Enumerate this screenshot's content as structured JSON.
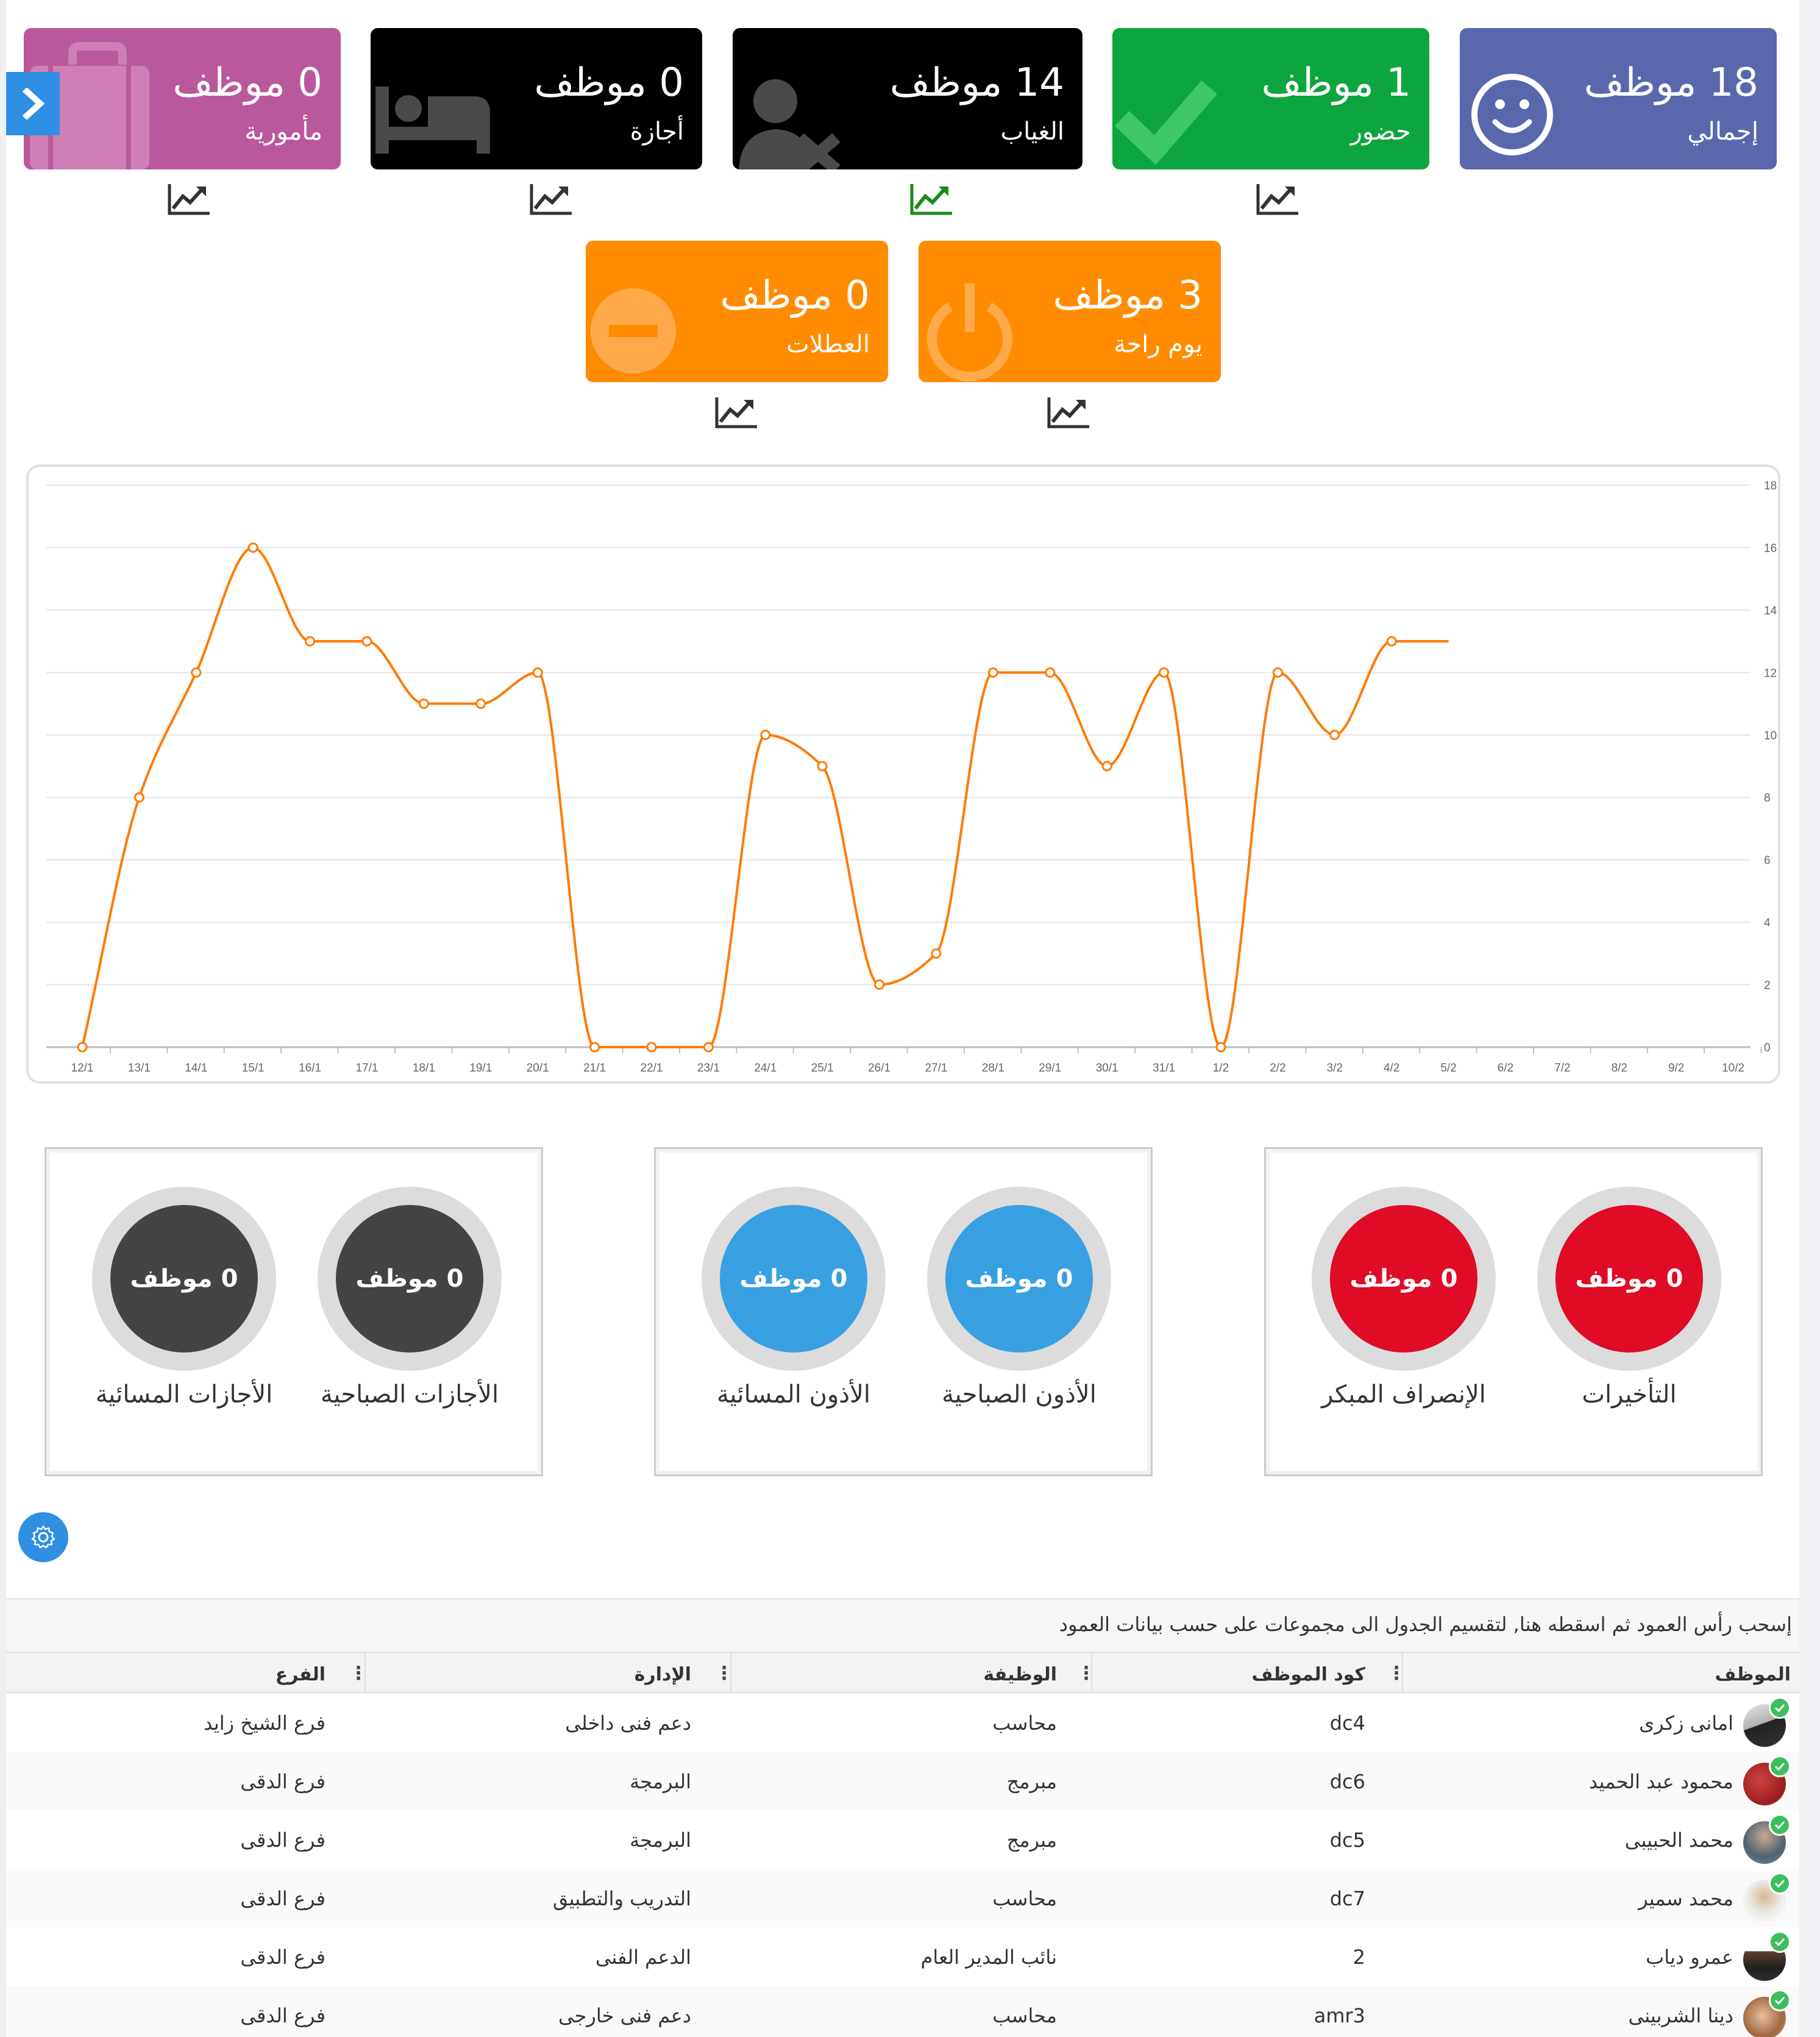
{
  "cards": {
    "total": {
      "count": "18 موظف",
      "label": "إجمالي",
      "color": "#5a67ad",
      "icon": "smiley-icon"
    },
    "present": {
      "count": "1 موظف",
      "label": "حضور",
      "color": "#0da53e",
      "icon": "checkmark-icon"
    },
    "absent": {
      "count": "14 موظف",
      "label": "الغياب",
      "color": "#000000",
      "icon": "user-remove-icon"
    },
    "leave": {
      "count": "0 موظف",
      "label": "أجازة",
      "color": "#000000",
      "icon": "bed-icon"
    },
    "mission": {
      "count": "0 موظف",
      "label": "مأمورية",
      "color": "#b9589a",
      "icon": "briefcase-icon"
    },
    "rest_day": {
      "count": "3 موظف",
      "label": "يوم راحة",
      "color": "#ff8c00",
      "icon": "power-icon"
    },
    "holidays": {
      "count": "0 موظف",
      "label": "العطلات",
      "color": "#ff8c00",
      "icon": "minus-circle-icon"
    }
  },
  "chart_data": {
    "type": "line",
    "x": [
      "12/1",
      "13/1",
      "14/1",
      "15/1",
      "16/1",
      "17/1",
      "18/1",
      "19/1",
      "20/1",
      "21/1",
      "22/1",
      "23/1",
      "24/1",
      "25/1",
      "26/1",
      "27/1",
      "28/1",
      "29/1",
      "30/1",
      "31/1",
      "1/2",
      "2/2",
      "3/2",
      "4/2",
      "5/2",
      "6/2",
      "7/2",
      "8/2",
      "9/2",
      "10/2"
    ],
    "series": [
      {
        "values": [
          0,
          8,
          12,
          16,
          13,
          13,
          11,
          11,
          12,
          0,
          0,
          0,
          10,
          9,
          2,
          3,
          12,
          12,
          9,
          12,
          0,
          12,
          10,
          13,
          13,
          null,
          null,
          null,
          null,
          null
        ],
        "color": "#ff7a00"
      }
    ],
    "ylim": [
      0,
      18
    ],
    "yticks": [
      "0",
      "2",
      "4",
      "6",
      "8",
      "10",
      "12",
      "14",
      "16",
      "18"
    ],
    "grid": true,
    "title": "",
    "xlabel": "",
    "ylabel": ""
  },
  "panels": {
    "late": {
      "count": "0 موظف",
      "label": "التأخيرات",
      "color": "#e00b25"
    },
    "early_leave": {
      "count": "0 موظف",
      "label": "الإنصراف المبكر",
      "color": "#e00b25"
    },
    "morning_permits": {
      "count": "0 موظف",
      "label": "الأذون الصباحية",
      "color": "#38a0e0"
    },
    "evening_permits": {
      "count": "0 موظف",
      "label": "الأذون المسائية",
      "color": "#38a0e0"
    },
    "morning_leaves": {
      "count": "0 موظف",
      "label": "الأجازات الصباحية",
      "color": "#444444"
    },
    "evening_leaves": {
      "count": "0 موظف",
      "label": "الأجازات المسائية",
      "color": "#444444"
    }
  },
  "table": {
    "group_hint": "إسحب رأس العمود ثم اسقطه هنا, لتقسيم الجدول الى مجموعات على حسب بيانات العمود",
    "columns": {
      "employee": "الموظف",
      "code": "كود الموظف",
      "job": "الوظيفة",
      "department": "الإدارة",
      "branch": "الفرع"
    },
    "rows": [
      {
        "name": "امانى زكرى",
        "code": "dc4",
        "job": "محاسب",
        "department": "دعم فنى داخلى",
        "branch": "فرع الشيخ زايد"
      },
      {
        "name": "محمود عبد الحميد",
        "code": "dc6",
        "job": "مبرمج",
        "department": "البرمجة",
        "branch": "فرع الدقى"
      },
      {
        "name": "محمد الحبيبى",
        "code": "dc5",
        "job": "مبرمج",
        "department": "البرمجة",
        "branch": "فرع الدقى"
      },
      {
        "name": "محمد سمير",
        "code": "dc7",
        "job": "محاسب",
        "department": "التدريب والتطبيق",
        "branch": "فرع الدقى"
      },
      {
        "name": "عمرو دياب",
        "code": "2",
        "job": "نائب المدير العام",
        "department": "الدعم الفنى",
        "branch": "فرع الدقى"
      },
      {
        "name": "دينا الشربينى",
        "code": "amr3",
        "job": "محاسب",
        "department": "دعم فنى خارجى",
        "branch": "فرع الدقى"
      }
    ]
  }
}
